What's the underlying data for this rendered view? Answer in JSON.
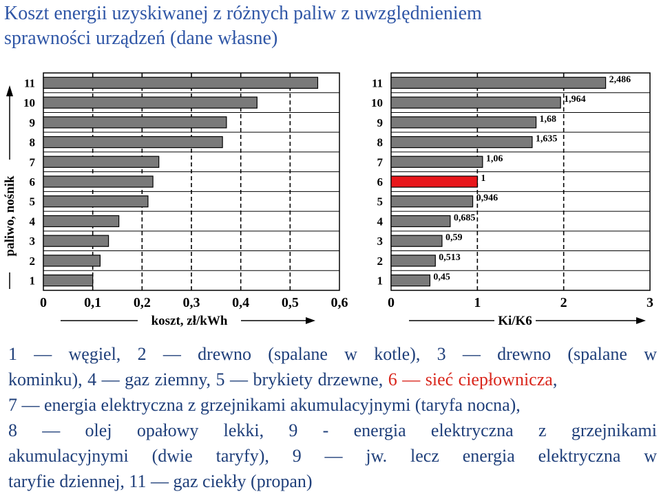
{
  "title": {
    "line1": "Koszt energii uzyskiwanej z różnych paliw z uwzględnieniem",
    "line2": "sprawności urządzeń (dane własne)"
  },
  "colors": {
    "title": "#2f56a6",
    "legend_text": "#1f3f7a",
    "legend_highlight": "#d9261c",
    "bar_fill": "#7a7a7a",
    "bar_highlight": "#e8171b"
  },
  "chart_data": [
    {
      "type": "bar",
      "orientation": "horizontal",
      "categories": [
        "1",
        "2",
        "3",
        "4",
        "5",
        "6",
        "7",
        "8",
        "9",
        "10",
        "11"
      ],
      "values": [
        0.1,
        0.115,
        0.132,
        0.153,
        0.212,
        0.222,
        0.234,
        0.363,
        0.371,
        0.433,
        0.556
      ],
      "xlabel": "koszt, zł/kWh",
      "ylabel": "paliwo, nośnik",
      "xlim": [
        0,
        0.6
      ],
      "xticks": [
        "0",
        "0,1",
        "0,2",
        "0,3",
        "0,4",
        "0,5",
        "0,6"
      ],
      "grid": true
    },
    {
      "type": "bar",
      "orientation": "horizontal",
      "categories": [
        "1",
        "2",
        "3",
        "4",
        "5",
        "6",
        "7",
        "8",
        "9",
        "10",
        "11"
      ],
      "values": [
        0.45,
        0.513,
        0.59,
        0.685,
        0.946,
        1,
        1.06,
        1.635,
        1.68,
        1.964,
        2.486
      ],
      "data_labels": [
        "0,45",
        "0,513",
        "0,59",
        "0,685",
        "0,946",
        "1",
        "1,06",
        "1,635",
        "1,68",
        "1,964",
        "2,486"
      ],
      "highlight_category": "6",
      "xlabel": "Ki/K6",
      "xlim": [
        0,
        3
      ],
      "xticks": [
        "0",
        "1",
        "2",
        "3"
      ],
      "grid": true
    }
  ],
  "legend": {
    "l1": "1 — węgiel, 2 — drewno (spalane w kotle), 3 — drewno (spalane w",
    "l2a": "kominku), 4 — gaz ziemny, 5 — brykiety drzewne,",
    "l2b": "6 — sieć ciepłownicza",
    "l2c": ",",
    "l3": "7 — energia elektryczna z grzejnikami akumulacyjnymi (taryfa nocna),",
    "l4": "8 — olej opałowy lekki, 9 - energia elektryczna z grzejnikami",
    "l5": "akumulacyjnymi (dwie taryfy), 9 — jw. lecz energia elektryczna w",
    "l6": "taryfie dziennej, 11 — gaz ciekły (propan)"
  }
}
